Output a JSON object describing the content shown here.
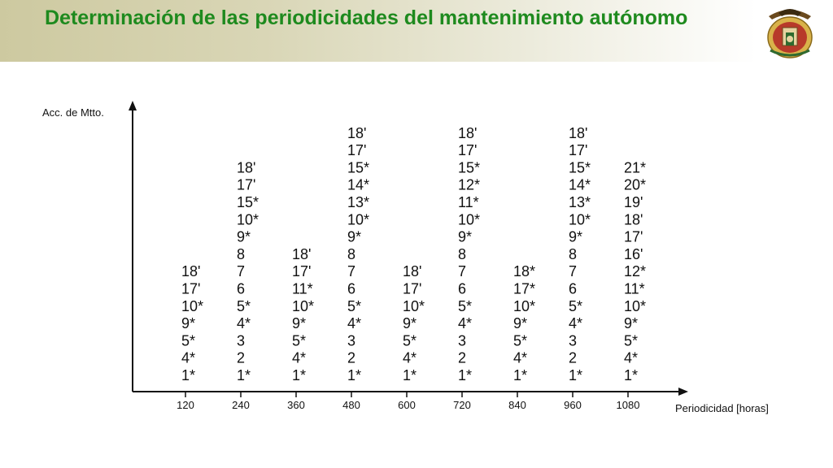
{
  "header": {
    "title": "Determinación de las periodicidades del mantenimiento autónomo"
  },
  "colors": {
    "title": "#1e8a1e",
    "header_band": "#d3cfa9",
    "axis": "#111111"
  },
  "chart_data": {
    "type": "table",
    "ylabel": "Acc. de Mtto.",
    "xlabel": "Periodicidad [horas]",
    "categories": [
      "120",
      "240",
      "360",
      "480",
      "600",
      "720",
      "840",
      "960",
      "1080"
    ],
    "stacks": [
      [
        "18'",
        "17'",
        "10*",
        "9*",
        "5*",
        "4*",
        "1*"
      ],
      [
        "18'",
        "17'",
        "15*",
        "10*",
        "9*",
        "8",
        "7",
        "6",
        "5*",
        "4*",
        "3",
        "2",
        "1*"
      ],
      [
        "18'",
        "17'",
        "11*",
        "10*",
        "9*",
        "5*",
        "4*",
        "1*"
      ],
      [
        "18'",
        "17'",
        "15*",
        "14*",
        "13*",
        "10*",
        "9*",
        "8",
        "7",
        "6",
        "5*",
        "4*",
        "3",
        "2",
        "1*"
      ],
      [
        "18'",
        "17'",
        "10*",
        "9*",
        "5*",
        "4*",
        "1*"
      ],
      [
        "18'",
        "17'",
        "15*",
        "12*",
        "11*",
        "10*",
        "9*",
        "8",
        "7",
        "6",
        "5*",
        "4*",
        "3",
        "2",
        "1*"
      ],
      [
        "18*",
        "17*",
        "10*",
        "9*",
        "5*",
        "4*",
        "1*"
      ],
      [
        "18'",
        "17'",
        "15*",
        "14*",
        "13*",
        "10*",
        "9*",
        "8",
        "7",
        "6",
        "5*",
        "4*",
        "3",
        "2",
        "1*"
      ],
      [
        "21*",
        "20*",
        "19'",
        "18'",
        "17'",
        "16'",
        "12*",
        "11*",
        "10*",
        "9*",
        "5*",
        "4*",
        "1*"
      ]
    ]
  }
}
